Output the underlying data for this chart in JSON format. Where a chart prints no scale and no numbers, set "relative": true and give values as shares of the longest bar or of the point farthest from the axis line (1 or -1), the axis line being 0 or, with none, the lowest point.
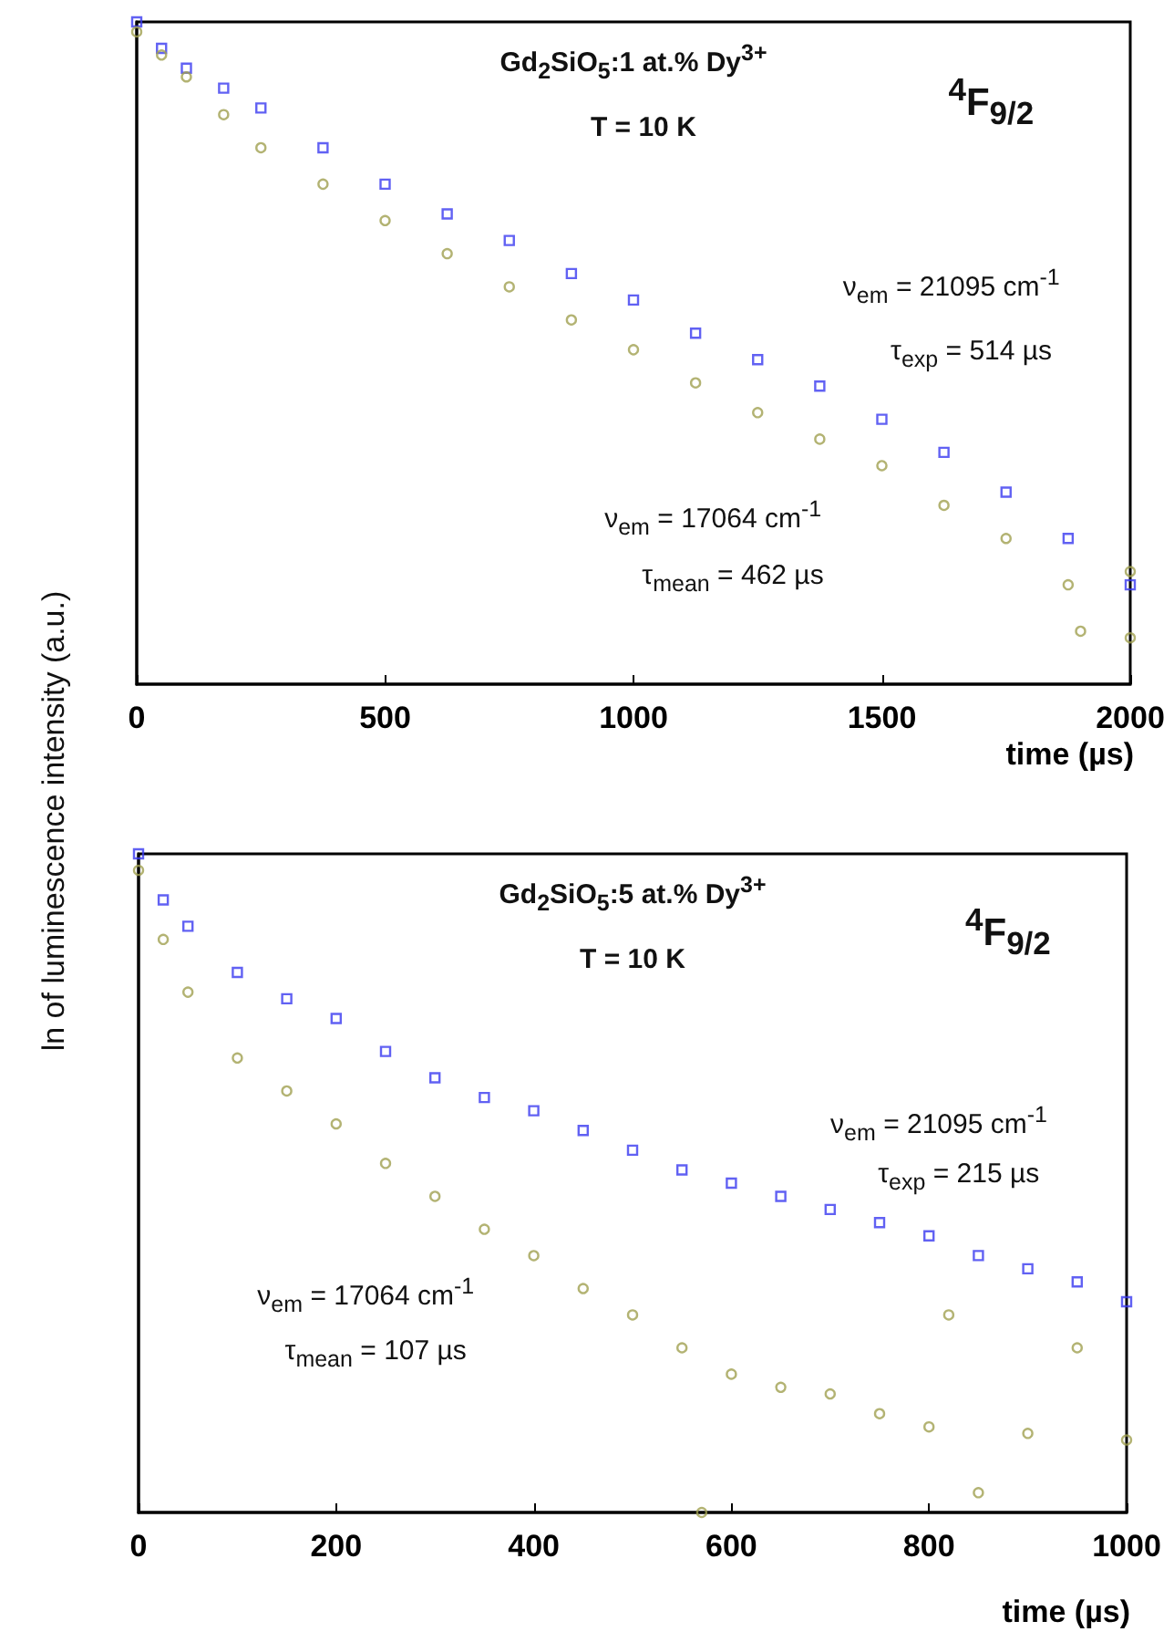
{
  "chart_data": [
    {
      "type": "scatter",
      "relative": true,
      "xlabel": "time (µs)",
      "ylabel": "ln of luminescence intensity (a.u.)",
      "xlim": [
        0,
        2000
      ],
      "xticks": [
        0,
        500,
        1000,
        1500,
        2000
      ],
      "annotations": [
        "Gd$_{2}$SiO$_{5}$:1 at.% Dy$^{3+}$",
        "T = 10 K",
        "$^{4}$F$_{9/2}$",
        "ν$_{em}$ = 21095 cm$^{-1}$",
        "τ$_{exp}$ = 514 µs",
        "ν$_{em}$ = 17064 cm$^{-1}$",
        "τ$_{mean}$ = 462 µs"
      ],
      "series": [
        {
          "color": "#3a3af0",
          "marker": "square",
          "x": [
            0,
            50,
            100,
            175,
            250,
            375,
            500,
            625,
            750,
            875,
            1000,
            1125,
            1250,
            1375,
            1500,
            1625,
            1750,
            1875,
            2000
          ],
          "values": [
            1,
            0.96,
            0.93,
            0.9,
            0.87,
            0.81,
            0.755,
            0.71,
            0.67,
            0.62,
            0.58,
            0.53,
            0.49,
            0.45,
            0.4,
            0.35,
            0.29,
            0.22,
            0.15
          ]
        },
        {
          "color": "#a0a050",
          "marker": "circle",
          "x": [
            0,
            50,
            100,
            175,
            250,
            375,
            500,
            625,
            750,
            875,
            1000,
            1125,
            1250,
            1375,
            1500,
            1625,
            1750,
            1875,
            1900,
            2000,
            2000
          ],
          "values": [
            0.985,
            0.95,
            0.917,
            0.86,
            0.81,
            0.755,
            0.7,
            0.65,
            0.6,
            0.55,
            0.505,
            0.455,
            0.41,
            0.37,
            0.33,
            0.27,
            0.22,
            0.15,
            0.08,
            0.07,
            0.17
          ]
        }
      ]
    },
    {
      "type": "scatter",
      "relative": true,
      "xlabel": "time (µs)",
      "xlim": [
        0,
        1000
      ],
      "xticks": [
        0,
        200,
        400,
        600,
        800,
        1000
      ],
      "annotations": [
        "Gd$_{2}$SiO$_{5}$:5 at.% Dy$^{3+}$",
        "T = 10 K",
        "$^{4}$F$_{9/2}$",
        "ν$_{em}$ = 21095 cm$^{-1}$",
        "τ$_{exp}$ = 215 µs",
        "ν$_{em}$ = 17064 cm$^{-1}$",
        "τ$_{mean}$ = 107 µs"
      ],
      "series": [
        {
          "color": "#3a3af0",
          "marker": "square",
          "x": [
            0,
            25,
            50,
            100,
            150,
            200,
            250,
            300,
            350,
            400,
            450,
            500,
            550,
            600,
            650,
            700,
            750,
            800,
            850,
            900,
            950,
            1000
          ],
          "values": [
            1,
            0.93,
            0.89,
            0.82,
            0.78,
            0.75,
            0.7,
            0.66,
            0.63,
            0.61,
            0.58,
            0.55,
            0.52,
            0.5,
            0.48,
            0.46,
            0.44,
            0.42,
            0.39,
            0.37,
            0.35,
            0.32
          ]
        },
        {
          "color": "#a0a050",
          "marker": "circle",
          "x": [
            0,
            25,
            50,
            100,
            150,
            200,
            250,
            300,
            350,
            400,
            450,
            500,
            550,
            570,
            600,
            650,
            700,
            750,
            800,
            820,
            850,
            900,
            950,
            1000
          ],
          "values": [
            0.975,
            0.87,
            0.79,
            0.69,
            0.64,
            0.59,
            0.53,
            0.48,
            0.43,
            0.39,
            0.34,
            0.3,
            0.25,
            0.0,
            0.21,
            0.19,
            0.18,
            0.15,
            0.13,
            0.3,
            0.03,
            0.12,
            0.25,
            0.11
          ]
        }
      ]
    }
  ]
}
